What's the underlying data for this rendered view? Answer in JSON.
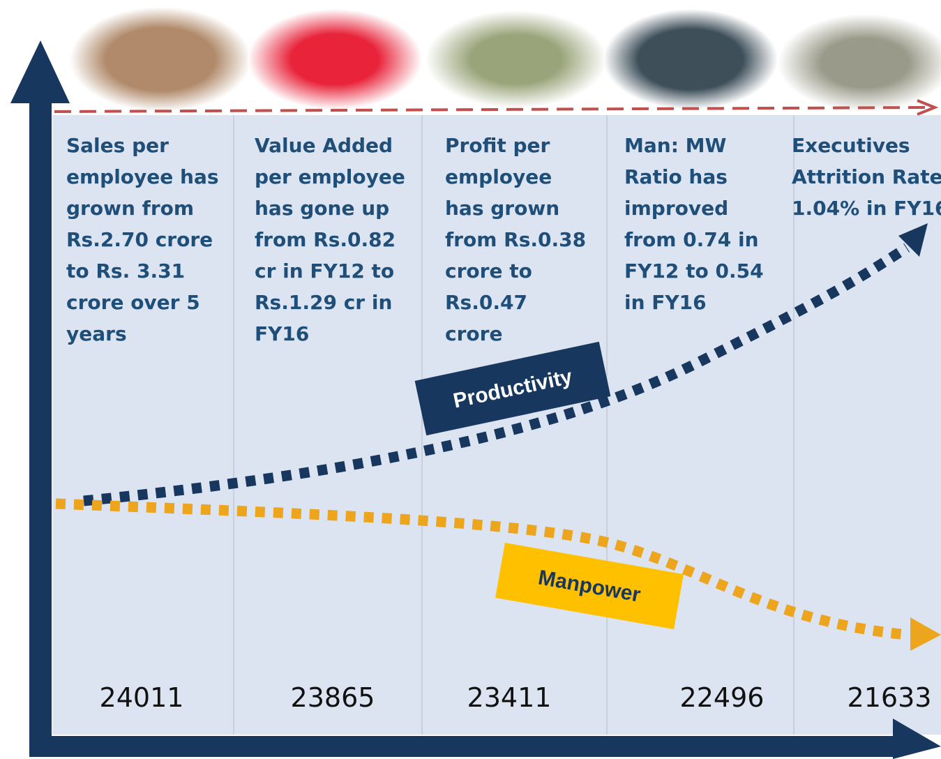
{
  "columns": [
    {
      "lines": [
        "Sales per",
        "employee has",
        "grown from",
        "Rs.2.70 crore",
        "to Rs. 3.31",
        "crore  over 5",
        "years"
      ],
      "count": 24011
    },
    {
      "lines": [
        "Value Added",
        "per employee",
        "has gone up",
        "from Rs.0.82",
        "cr in FY12 to",
        "Rs.1.29 cr in",
        "FY16"
      ],
      "count": 23865
    },
    {
      "lines": [
        "Profit per",
        "employee",
        "has grown",
        "from Rs.0.38",
        "crore to",
        "Rs.0.47",
        "crore"
      ],
      "count": 23411
    },
    {
      "lines": [
        "Man: MW",
        "Ratio has",
        "improved",
        "from 0.74 in",
        "FY12 to 0.54",
        "in FY16"
      ],
      "count": 22496
    },
    {
      "lines": [
        "Executives",
        "Attrition Rate",
        "1.04% in FY16"
      ],
      "count": 21633
    }
  ],
  "labels": {
    "productivity": "Productivity",
    "manpower": "Manpower"
  }
}
